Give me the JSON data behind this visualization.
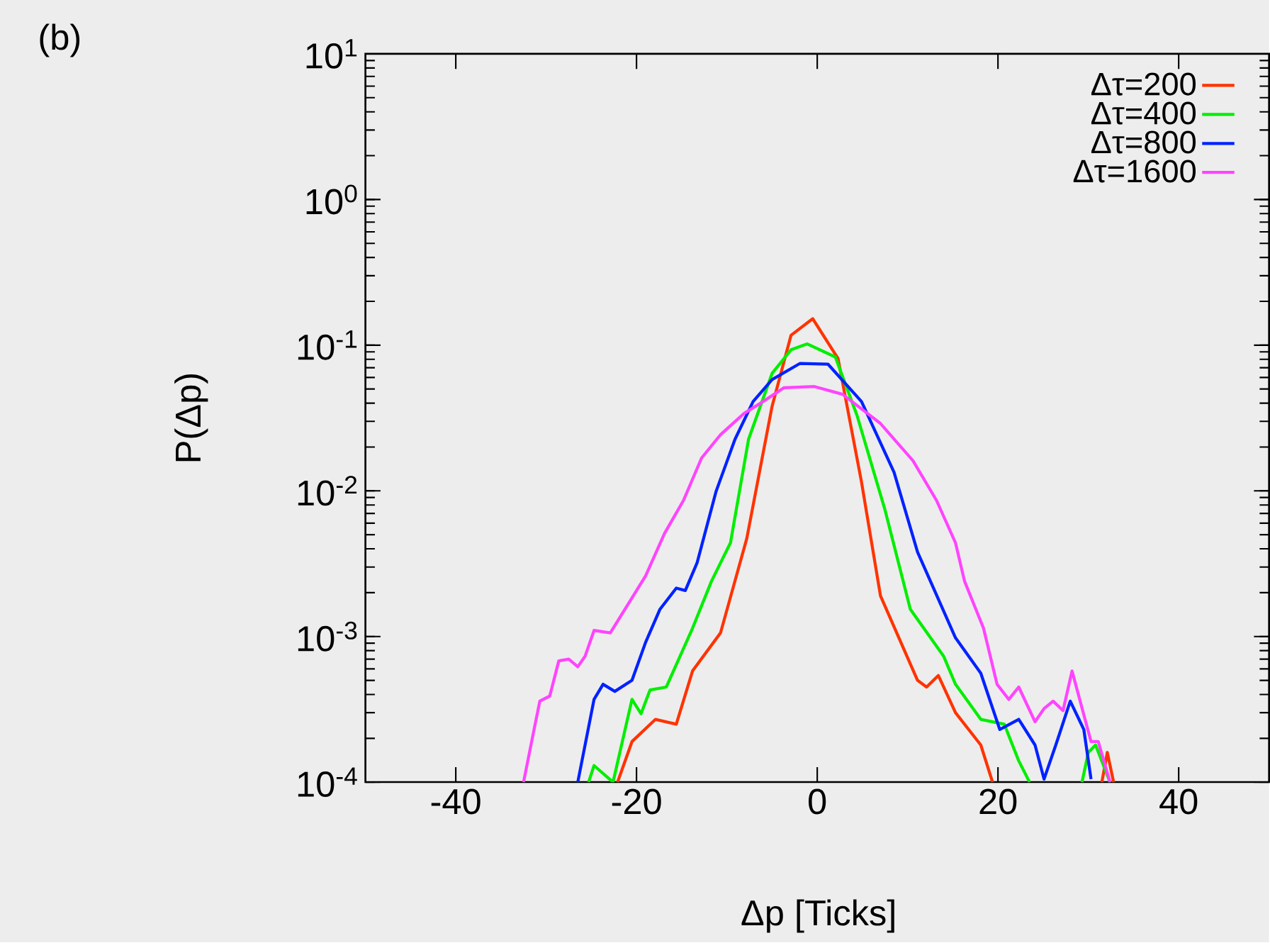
{
  "chart_data": {
    "type": "line",
    "log": "y",
    "xlabel": "Δp [Ticks]",
    "ylabel": "P(Δp)",
    "annotations": [
      "(b)"
    ],
    "xlim": [
      -50,
      50
    ],
    "xticks": [
      -40,
      -20,
      0,
      20,
      40
    ],
    "ylim": [
      0.0001,
      10
    ],
    "yticks": [
      {
        "value": 0.0001,
        "label": "10$^{-4}$"
      },
      {
        "value": 0.001,
        "label": "10$^{-3}$"
      },
      {
        "value": 0.01,
        "label": "10$^{-2}$"
      },
      {
        "value": 0.1,
        "label": "10$^{-1}$"
      },
      {
        "value": 1,
        "label": "10$^{0}$"
      },
      {
        "value": 10,
        "label": "10$^{1}$"
      }
    ],
    "legend": "top right",
    "marker": "none",
    "line_style": "solid",
    "series": [
      {
        "name": "Δτ=200",
        "color": "#ff3300",
        "x": [
          -22.1,
          -20.5,
          -17.9,
          -15.6,
          -13.8,
          -10.7,
          -7.8,
          -5.0,
          -2.9,
          -0.5,
          2.3,
          4.9,
          7.0,
          11.1,
          12.1,
          13.4,
          15.3,
          18.1,
          19.4,
          null,
          31.5,
          32.1,
          32.8
        ],
        "values": [
          0.0001,
          0.00019,
          0.00027,
          0.00025,
          0.00058,
          0.00106,
          0.0047,
          0.038,
          0.117,
          0.152,
          0.081,
          0.0115,
          0.0019,
          0.0005,
          0.00045,
          0.00054,
          0.0003,
          0.00018,
          0.0001,
          null,
          0.0001,
          0.00016,
          0.0001
        ]
      },
      {
        "name": "Δτ=400",
        "color": "#00ee00",
        "x": [
          -25.3,
          -24.7,
          -22.6,
          -20.5,
          -19.5,
          -18.5,
          -16.7,
          -13.8,
          -11.7,
          -9.6,
          -7.6,
          -5.0,
          -2.9,
          -1.1,
          2.0,
          4.4,
          7.5,
          10.3,
          14.0,
          15.3,
          18.1,
          20.7,
          22.3,
          23.5,
          null,
          29.3,
          30.0,
          30.8,
          32.4
        ],
        "values": [
          0.0001,
          0.00013,
          0.0001,
          0.00037,
          0.000295,
          0.00043,
          0.00045,
          0.00114,
          0.0024,
          0.0044,
          0.0226,
          0.064,
          0.093,
          0.102,
          0.083,
          0.033,
          0.0074,
          0.00154,
          0.00073,
          0.00047,
          0.00027,
          0.00025,
          0.00014,
          0.0001,
          null,
          0.0001,
          0.00016,
          0.00018,
          0.0001
        ]
      },
      {
        "name": "Δτ=800",
        "color": "#0022ff",
        "x": [
          -26.5,
          -24.7,
          -23.7,
          -22.4,
          -20.5,
          -19.0,
          -17.4,
          -15.6,
          -14.6,
          -13.3,
          -11.2,
          -9.1,
          -7.1,
          -5.0,
          -1.9,
          1.2,
          4.9,
          8.5,
          11.1,
          15.3,
          18.1,
          20.2,
          22.3,
          24.1,
          25.1,
          26.4,
          28.0,
          29.5,
          30.3
        ],
        "values": [
          0.0001,
          0.00037,
          0.00047,
          0.00042,
          0.0005,
          0.00091,
          0.00154,
          0.00215,
          0.00207,
          0.0032,
          0.0099,
          0.0226,
          0.041,
          0.058,
          0.075,
          0.074,
          0.041,
          0.0134,
          0.0038,
          0.00098,
          0.00056,
          0.00023,
          0.00027,
          0.00018,
          0.000105,
          0.00018,
          0.00036,
          0.00023,
          0.000105
        ]
      },
      {
        "name": "Δτ=1600",
        "color": "#ff44ff",
        "x": [
          -32.5,
          -31.4,
          -30.7,
          -29.6,
          -28.6,
          -27.5,
          -26.5,
          -25.7,
          -24.7,
          -22.9,
          -21.6,
          -19.0,
          -16.9,
          -14.8,
          -12.8,
          -10.7,
          -8.1,
          -6.0,
          -3.7,
          -0.3,
          2.8,
          7.0,
          10.6,
          13.2,
          15.3,
          16.3,
          18.4,
          19.9,
          21.2,
          22.3,
          24.1,
          25.1,
          26.1,
          27.2,
          28.2,
          30.3,
          31.1,
          32.4
        ],
        "values": [
          0.0001,
          0.00022,
          0.00036,
          0.00039,
          0.00068,
          0.0007,
          0.00062,
          0.00073,
          0.0011,
          0.00106,
          0.00143,
          0.0026,
          0.0051,
          0.0086,
          0.0168,
          0.0243,
          0.034,
          0.041,
          0.051,
          0.052,
          0.046,
          0.029,
          0.0161,
          0.0086,
          0.0044,
          0.0024,
          0.00114,
          0.00047,
          0.00037,
          0.00045,
          0.00026,
          0.00032,
          0.00036,
          0.00031,
          0.00058,
          0.00019,
          0.00019,
          0.0001
        ]
      }
    ]
  }
}
